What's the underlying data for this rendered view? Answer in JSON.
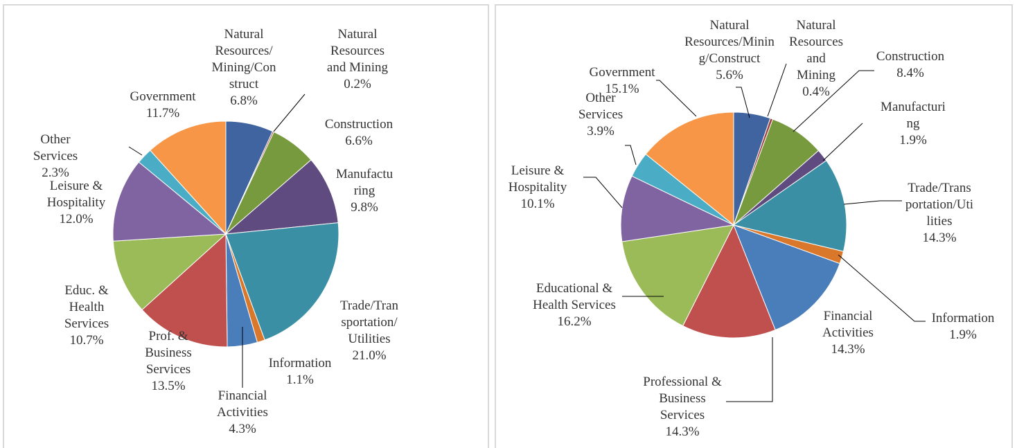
{
  "chart_data": [
    {
      "type": "pie",
      "categories": [
        "Natural Resources/Mining/Construct",
        "Natural Resources and Mining",
        "Construction",
        "Manufacturing",
        "Trade/Transportation/Utilities",
        "Information",
        "Financial Activities",
        "Prof. & Business Services",
        "Educ. & Health Services",
        "Leisure & Hospitality",
        "Other Services",
        "Government"
      ],
      "values": [
        6.8,
        0.2,
        6.6,
        9.8,
        21.0,
        1.1,
        4.3,
        13.5,
        10.7,
        12.0,
        2.3,
        11.7
      ],
      "value_labels": [
        "6.8%",
        "0.2%",
        "6.6%",
        "9.8%",
        "21.0%",
        "1.1%",
        "4.3%",
        "13.5%",
        "10.7%",
        "12.0%",
        "2.3%",
        "11.7%"
      ],
      "colors": [
        "#3f64a0",
        "#a04040",
        "#789a3e",
        "#604b80",
        "#3b8fa5",
        "#d9772b",
        "#4a7ebb",
        "#c0504d",
        "#9bbb59",
        "#8064a2",
        "#4bacc6",
        "#f79646"
      ]
    },
    {
      "type": "pie",
      "categories": [
        "Natural Resources/Mining/Construct",
        "Natural Resources and Mining",
        "Construction",
        "Manufacturing",
        "Trade/Transportation/Utilities",
        "Information",
        "Financial Activities",
        "Professional & Business Services",
        "Educational & Health Services",
        "Leisure & Hospitality",
        "Other Services",
        "Government"
      ],
      "values": [
        5.6,
        0.4,
        8.4,
        1.9,
        14.3,
        1.9,
        14.3,
        14.3,
        16.2,
        10.1,
        3.9,
        15.1
      ],
      "value_labels": [
        "5.6%",
        "0.4%",
        "8.4%",
        "1.9%",
        "14.3%",
        "1.9%",
        "14.3%",
        "14.3%",
        "16.2%",
        "10.1%",
        "3.9%",
        "15.1%"
      ],
      "colors": [
        "#3f64a0",
        "#a04040",
        "#789a3e",
        "#604b80",
        "#3b8fa5",
        "#d9772b",
        "#4a7ebb",
        "#c0504d",
        "#9bbb59",
        "#8064a2",
        "#4bacc6",
        "#f79646"
      ]
    }
  ]
}
